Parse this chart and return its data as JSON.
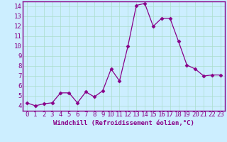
{
  "x": [
    0,
    1,
    2,
    3,
    4,
    5,
    6,
    7,
    8,
    9,
    10,
    11,
    12,
    13,
    14,
    15,
    16,
    17,
    18,
    19,
    20,
    21,
    22,
    23
  ],
  "y": [
    4.3,
    4.0,
    4.2,
    4.3,
    5.3,
    5.3,
    4.3,
    5.4,
    4.9,
    5.5,
    7.7,
    6.5,
    10.0,
    14.1,
    14.3,
    12.0,
    12.8,
    12.8,
    10.5,
    8.1,
    7.7,
    7.0,
    7.1,
    7.1
  ],
  "line_color": "#880088",
  "marker": "D",
  "marker_size": 2.5,
  "background_color": "#cceeff",
  "grid_color": "#aaddcc",
  "xlabel": "Windchill (Refroidissement éolien,°C)",
  "ylabel": "",
  "xlim": [
    -0.5,
    23.5
  ],
  "ylim": [
    3.5,
    14.5
  ],
  "yticks": [
    4,
    5,
    6,
    7,
    8,
    9,
    10,
    11,
    12,
    13,
    14
  ],
  "xticks": [
    0,
    1,
    2,
    3,
    4,
    5,
    6,
    7,
    8,
    9,
    10,
    11,
    12,
    13,
    14,
    15,
    16,
    17,
    18,
    19,
    20,
    21,
    22,
    23
  ],
  "xlabel_fontsize": 6.5,
  "tick_fontsize": 6.5,
  "tick_color": "#880088",
  "spine_color": "#880088",
  "label_color": "#880088"
}
